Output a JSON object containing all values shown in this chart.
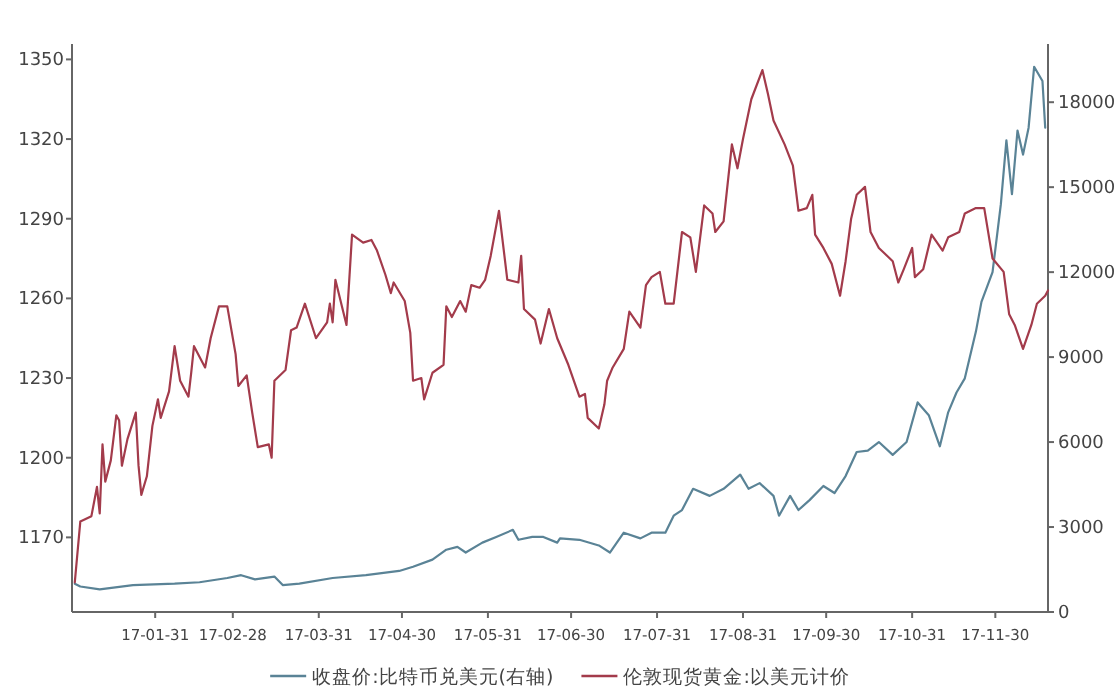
{
  "chart_data": {
    "type": "line",
    "legend": "bottom",
    "xlim": [
      "--01-01",
      "--12-19"
    ],
    "xticks": [
      {
        "value": "--01-31",
        "label": "17-01-31"
      },
      {
        "value": "--02-28",
        "label": "17-02-28"
      },
      {
        "value": "--03-31",
        "label": "17-03-31"
      },
      {
        "value": "--04-30",
        "label": "17-04-30"
      },
      {
        "value": "--05-31",
        "label": "17-05-31"
      },
      {
        "value": "--06-30",
        "label": "17-06-30"
      },
      {
        "value": "--07-31",
        "label": "17-07-31"
      },
      {
        "value": "--08-31",
        "label": "17-08-31"
      },
      {
        "value": "--09-30",
        "label": "17-09-30"
      },
      {
        "value": "--10-31",
        "label": "17-10-31"
      },
      {
        "value": "--11-30",
        "label": "17-11-30"
      }
    ],
    "ylim": [
      1141.9,
      1355.8
    ],
    "yticks": [
      1170,
      1200,
      1230,
      1260,
      1290,
      1320,
      1350
    ],
    "y2lim": [
      0,
      20055
    ],
    "y2ticks": [
      0,
      3000,
      6000,
      9000,
      12000,
      15000,
      18000
    ],
    "series": [
      {
        "name": "收盘价:比特币兑美元(右轴)",
        "color": "#5a8396",
        "axis": "y2",
        "x": [
          "--01-02",
          "--01-04",
          "--01-11",
          "--01-23",
          "--02-07",
          "--02-16",
          "--02-26",
          "--03-03",
          "--03-08",
          "--03-15",
          "--03-18",
          "--03-24",
          "--04-05",
          "--04-17",
          "--04-29",
          "--05-04",
          "--05-11",
          "--05-16",
          "--05-20",
          "--05-23",
          "--05-29",
          "--06-03",
          "--06-09",
          "--06-11",
          "--06-16",
          "--06-20",
          "--06-25",
          "--06-26",
          "--07-03",
          "--07-10",
          "--07-14",
          "--07-19",
          "--07-25",
          "--07-29",
          "--08-03",
          "--08-06",
          "--08-09",
          "--08-13",
          "--08-19",
          "--08-24",
          "--08-30",
          "--09-02",
          "--09-06",
          "--09-11",
          "--09-13",
          "--09-17",
          "--09-20",
          "--09-24",
          "--09-29",
          "--10-03",
          "--10-07",
          "--10-11",
          "--10-15",
          "--10-19",
          "--10-24",
          "--10-29",
          "--11-02",
          "--11-06",
          "--11-10",
          "--11-13",
          "--11-16",
          "--11-19",
          "--11-23",
          "--11-25",
          "--11-29",
          "--12-02",
          "--12-04",
          "--12-06",
          "--12-08",
          "--12-10",
          "--12-12",
          "--12-14",
          "--12-17",
          "--12-18"
        ],
        "values": [
          1000,
          900,
          800,
          950,
          1000,
          1050,
          1200,
          1300,
          1150,
          1250,
          950,
          1000,
          1200,
          1300,
          1450,
          1600,
          1850,
          2200,
          2300,
          2100,
          2450,
          2650,
          2900,
          2550,
          2650,
          2650,
          2450,
          2600,
          2550,
          2350,
          2100,
          2800,
          2600,
          2800,
          2800,
          3400,
          3600,
          4350,
          4100,
          4350,
          4850,
          4350,
          4550,
          4100,
          3400,
          4100,
          3600,
          3950,
          4450,
          4200,
          4800,
          5650,
          5700,
          6000,
          5550,
          6000,
          7400,
          6950,
          5850,
          7050,
          7750,
          8250,
          9900,
          10950,
          12000,
          14400,
          16650,
          14750,
          17000,
          16150,
          17100,
          19250,
          18750,
          17100
        ]
      },
      {
        "name": "伦敦现货黄金:以美元计价",
        "color": "#a33b4b",
        "x": [
          "--01-02",
          "--01-04",
          "--01-08",
          "--01-10",
          "--01-11",
          "--01-12",
          "--01-13",
          "--01-15",
          "--01-17",
          "--01-18",
          "--01-19",
          "--01-21",
          "--01-24",
          "--01-25",
          "--01-26",
          "--01-28",
          "--01-30",
          "--02-01",
          "--02-02",
          "--02-05",
          "--02-07",
          "--02-09",
          "--02-12",
          "--02-13",
          "--02-14",
          "--02-18",
          "--02-20",
          "--02-23",
          "--02-26",
          "--03-01",
          "--03-02",
          "--03-05",
          "--03-07",
          "--03-09",
          "--03-13",
          "--03-14",
          "--03-15",
          "--03-19",
          "--03-21",
          "--03-23",
          "--03-26",
          "--03-30",
          "--04-03",
          "--04-04",
          "--04-05",
          "--04-06",
          "--04-10",
          "--04-12",
          "--04-16",
          "--04-19",
          "--04-21",
          "--04-24",
          "--04-26",
          "--04-27",
          "--05-01",
          "--05-03",
          "--05-04",
          "--05-07",
          "--05-08",
          "--05-11",
          "--05-15",
          "--05-16",
          "--05-18",
          "--05-21",
          "--05-23",
          "--05-25",
          "--05-28",
          "--05-30",
          "--06-01",
          "--06-04",
          "--06-07",
          "--06-11",
          "--06-12",
          "--06-13",
          "--06-17",
          "--06-19",
          "--06-22",
          "--06-25",
          "--06-29",
          "--07-03",
          "--07-05",
          "--07-06",
          "--07-10",
          "--07-12",
          "--07-13",
          "--07-15",
          "--07-19",
          "--07-21",
          "--07-25",
          "--07-27",
          "--07-29",
          "--08-01",
          "--08-03",
          "--08-06",
          "--08-09",
          "--08-12",
          "--08-14",
          "--08-17",
          "--08-20",
          "--08-21",
          "--08-24",
          "--08-27",
          "--08-29",
          "--08-31",
          "--09-03",
          "--09-07",
          "--09-09",
          "--09-11",
          "--09-15",
          "--09-18",
          "--09-20",
          "--09-23",
          "--09-25",
          "--09-26",
          "--09-29",
          "--10-02",
          "--10-05",
          "--10-07",
          "--10-09",
          "--10-11",
          "--10-14",
          "--10-16",
          "--10-19",
          "--10-21",
          "--10-24",
          "--10-26",
          "--10-28",
          "--10-31",
          "--11-01",
          "--11-04",
          "--11-07",
          "--11-11",
          "--11-13",
          "--11-17",
          "--11-19",
          "--11-23",
          "--11-26",
          "--11-29",
          "--12-03",
          "--12-05",
          "--12-07",
          "--12-10",
          "--12-13",
          "--12-15",
          "--12-18",
          "--12-19"
        ],
        "values": [
          1153,
          1176,
          1178,
          1189,
          1179,
          1205,
          1191,
          1199,
          1216,
          1214,
          1197,
          1207,
          1217,
          1197,
          1186,
          1193,
          1212,
          1222,
          1215,
          1225,
          1242,
          1229,
          1223,
          1232,
          1242,
          1234,
          1245,
          1257,
          1257,
          1239,
          1227,
          1231,
          1217,
          1204,
          1205,
          1200,
          1229,
          1233,
          1248,
          1249,
          1258,
          1245,
          1251,
          1258,
          1251,
          1267,
          1250,
          1284,
          1281,
          1282,
          1278,
          1269,
          1262,
          1266,
          1259,
          1247,
          1229,
          1230,
          1222,
          1232,
          1235,
          1257,
          1253,
          1259,
          1255,
          1265,
          1264,
          1267,
          1276,
          1293,
          1267,
          1266,
          1276,
          1256,
          1252,
          1243,
          1256,
          1245,
          1235,
          1223,
          1224,
          1215,
          1211,
          1220,
          1229,
          1234,
          1241,
          1255,
          1249,
          1265,
          1268,
          1270,
          1258,
          1258,
          1285,
          1283,
          1270,
          1295,
          1292,
          1285,
          1289,
          1318,
          1309,
          1320,
          1335,
          1346,
          1337,
          1327,
          1318,
          1310,
          1293,
          1294,
          1299,
          1284,
          1279,
          1273,
          1261,
          1274,
          1290,
          1299,
          1302,
          1285,
          1279,
          1277,
          1274,
          1266,
          1271,
          1279,
          1268,
          1271,
          1284,
          1278,
          1283,
          1285,
          1292,
          1294,
          1294,
          1275,
          1270,
          1254,
          1250,
          1241,
          1250,
          1258,
          1261,
          1263
        ]
      }
    ]
  }
}
